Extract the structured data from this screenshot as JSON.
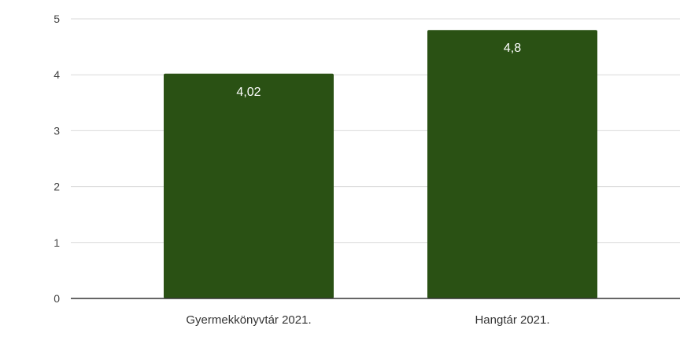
{
  "chart_data": {
    "type": "bar",
    "categories": [
      "Gyermekkönyvtár 2021.",
      "Hangtár 2021."
    ],
    "values": [
      4.02,
      4.8
    ],
    "value_labels": [
      "4,02",
      "4,8"
    ],
    "title": "",
    "xlabel": "",
    "ylabel": "",
    "ylim": [
      0,
      5
    ],
    "yticks": [
      "0",
      "1",
      "2",
      "3",
      "4",
      "5"
    ],
    "grid": true,
    "legend": "none",
    "bar_color": "#2a5114"
  }
}
